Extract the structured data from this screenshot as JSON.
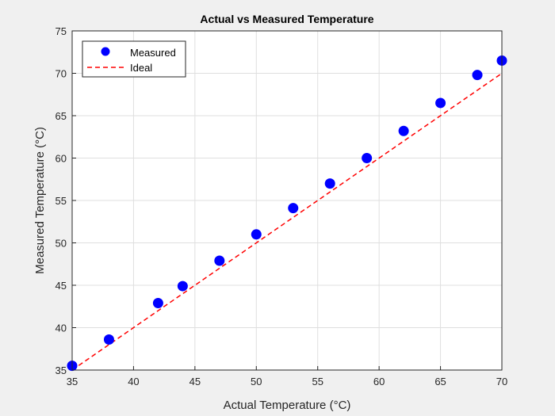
{
  "chart_data": {
    "type": "scatter",
    "title": "Actual vs Measured Temperature",
    "xlabel": "Actual Temperature (°C)",
    "ylabel": "Measured Temperature (°C)",
    "xlim": [
      35,
      70
    ],
    "ylim": [
      35,
      75
    ],
    "xticks": [
      35,
      40,
      45,
      50,
      55,
      60,
      65,
      70
    ],
    "yticks": [
      35,
      40,
      45,
      50,
      55,
      60,
      65,
      70,
      75
    ],
    "grid": true,
    "legend_position": "top-left",
    "series": [
      {
        "name": "Measured",
        "style": "markers",
        "color": "#0000ff",
        "x": [
          35,
          38,
          42,
          44,
          47,
          50,
          53,
          56,
          59,
          62,
          65,
          68,
          70
        ],
        "y": [
          35.5,
          38.6,
          42.9,
          44.9,
          47.9,
          51.0,
          54.1,
          57.0,
          60.0,
          63.2,
          66.5,
          69.8,
          71.5
        ]
      },
      {
        "name": "Ideal",
        "style": "dashed-line",
        "color": "#ff0000",
        "x": [
          35,
          70
        ],
        "y": [
          35,
          70
        ]
      }
    ]
  }
}
